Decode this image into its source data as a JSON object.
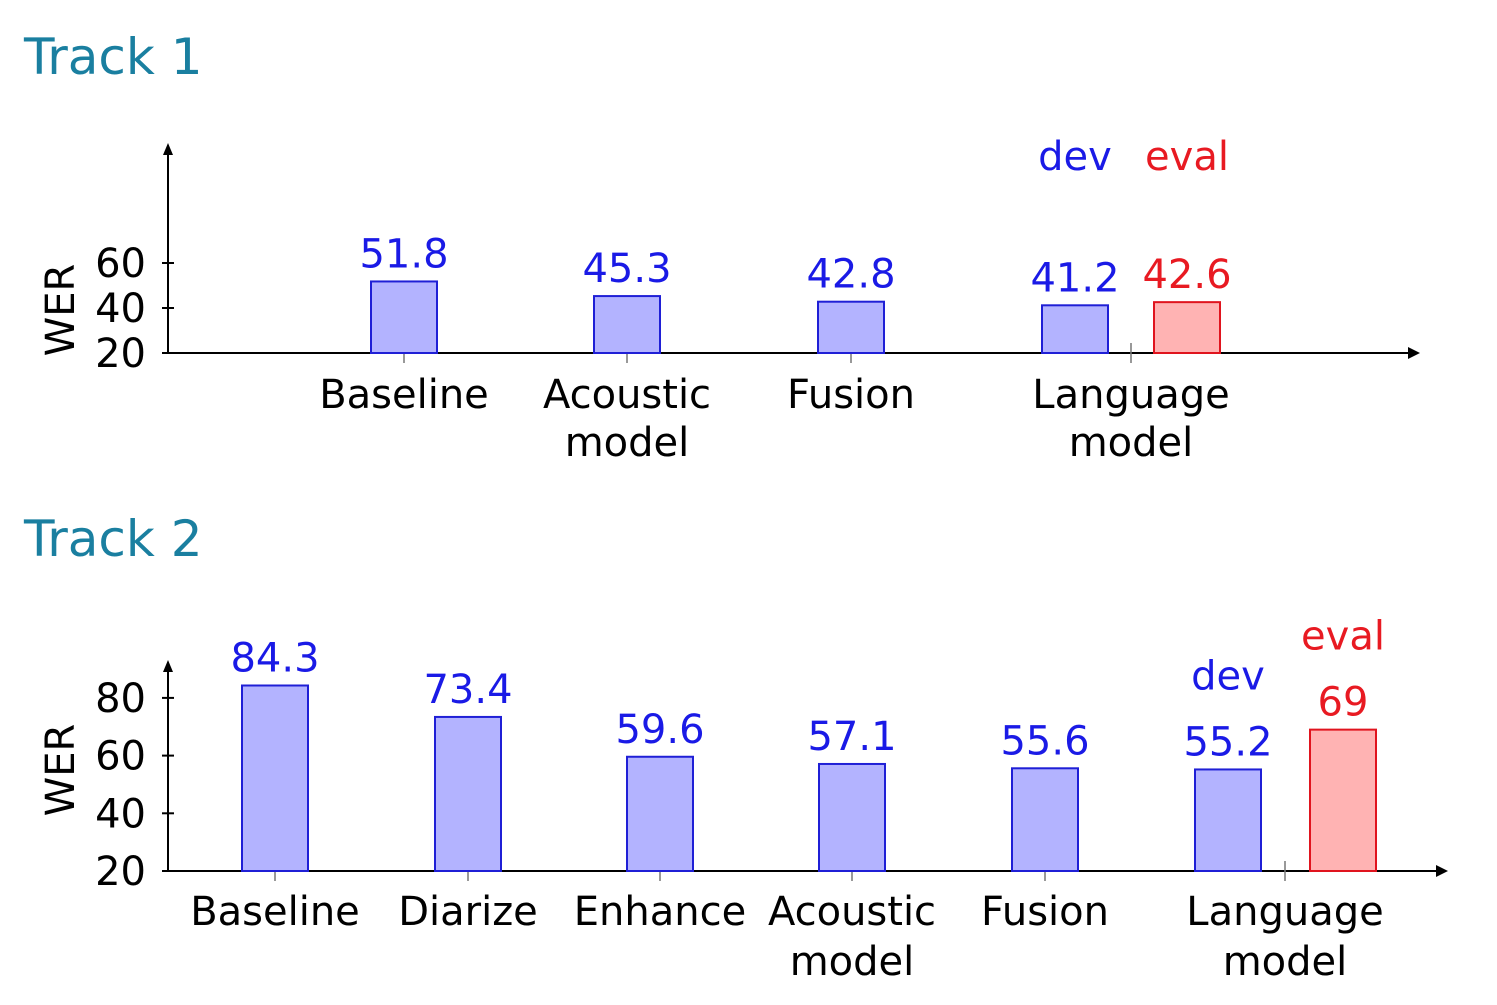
{
  "colors": {
    "title": "#1a7fa0",
    "dev_fill": "#b3b3ff",
    "dev_stroke": "#1f1fd6",
    "dev_text": "#1a1ae6",
    "eval_fill": "#ffb3b3",
    "eval_stroke": "#e0141e",
    "eval_text": "#e81a22",
    "axis": "#000000"
  },
  "chart_data": [
    {
      "type": "bar",
      "title": "Track 1",
      "ylabel": "WER",
      "xlabel": "",
      "ylim": [
        20,
        60
      ],
      "yticks": [
        "20",
        "40",
        "60"
      ],
      "categories": [
        [
          "Baseline"
        ],
        [
          "Acoustic",
          "model"
        ],
        [
          "Fusion"
        ],
        [
          "Language",
          "model"
        ]
      ],
      "series": [
        {
          "name": "dev",
          "values": [
            51.8,
            45.3,
            42.8,
            41.2
          ],
          "labels": [
            "51.8",
            "45.3",
            "42.8",
            "41.2"
          ]
        },
        {
          "name": "eval",
          "values": [
            null,
            null,
            null,
            42.6
          ],
          "labels": [
            "",
            "",
            "",
            "42.6"
          ]
        }
      ],
      "grid": false,
      "legend": "above-last-group"
    },
    {
      "type": "bar",
      "title": "Track 2",
      "ylabel": "WER",
      "xlabel": "",
      "ylim": [
        20,
        80
      ],
      "yticks": [
        "20",
        "40",
        "60",
        "80"
      ],
      "categories": [
        [
          "Baseline"
        ],
        [
          "Diarize"
        ],
        [
          "Enhance"
        ],
        [
          "Acoustic",
          "model"
        ],
        [
          "Fusion"
        ],
        [
          "Language",
          "model"
        ]
      ],
      "series": [
        {
          "name": "dev",
          "values": [
            84.3,
            73.4,
            59.6,
            57.1,
            55.6,
            55.2
          ],
          "labels": [
            "84.3",
            "73.4",
            "59.6",
            "57.1",
            "55.6",
            "55.2"
          ]
        },
        {
          "name": "eval",
          "values": [
            null,
            null,
            null,
            null,
            null,
            69
          ],
          "labels": [
            "",
            "",
            "",
            "",
            "",
            "69"
          ]
        }
      ],
      "grid": false,
      "legend": "above-last-group"
    }
  ]
}
